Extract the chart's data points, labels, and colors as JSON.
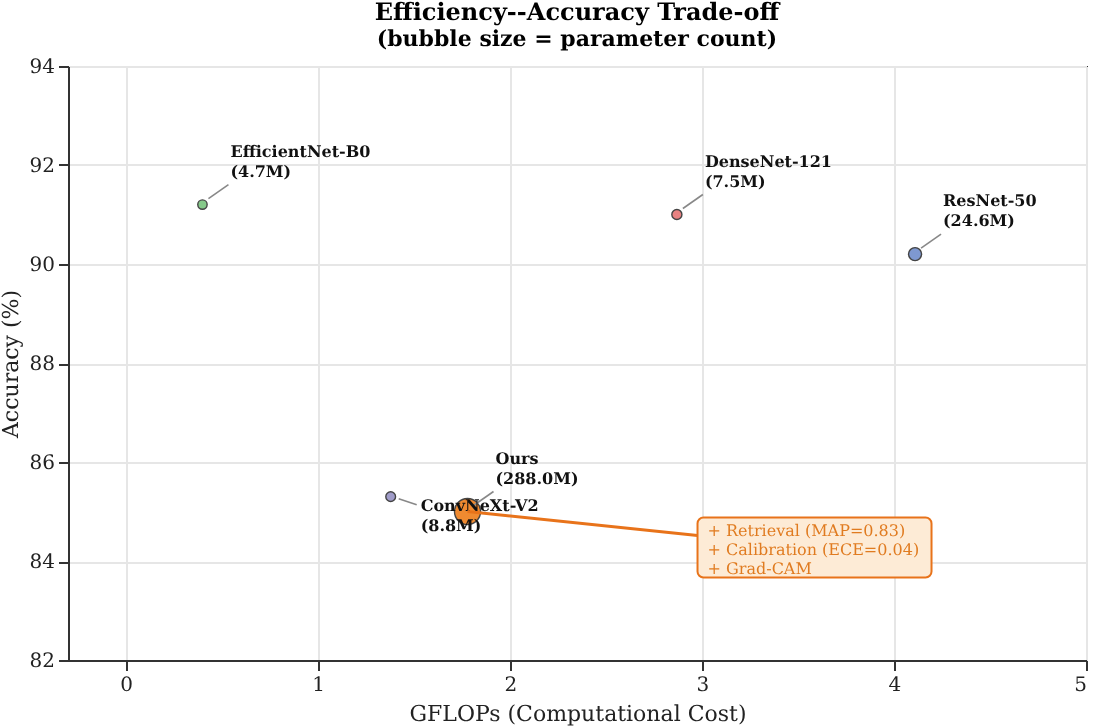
{
  "chart_data": {
    "type": "bubble",
    "title": "Efficiency--Accuracy Trade-off",
    "subtitle": "(bubble size = parameter count)",
    "xlabel": "GFLOPs (Computational Cost)",
    "ylabel": "Accuracy (%)",
    "xlim": [
      -0.3,
      5
    ],
    "xticks": [
      0,
      1,
      2,
      3,
      4,
      5
    ],
    "ylim": [
      82,
      94
    ],
    "yticks": [
      82,
      84,
      86,
      88,
      90,
      92,
      94
    ],
    "grid": true,
    "series": [
      {
        "name": "EfficientNet-B0\n(4.7M)",
        "color": "#86c98a",
        "x": [
          0.4
        ],
        "values": [
          91.2
        ],
        "sizes": [
          0.13
        ]
      },
      {
        "name": "DenseNet-121\n(7.5M)",
        "color": "#e88282",
        "x": [
          2.87
        ],
        "values": [
          91.0
        ],
        "sizes": [
          0.15
        ]
      },
      {
        "name": "ResNet-50\n(24.6M)",
        "color": "#7e98d0",
        "x": [
          4.11
        ],
        "values": [
          90.2
        ],
        "sizes": [
          0.25
        ]
      },
      {
        "name": "ConvNeXt-V2\n(8.8M)",
        "color": "#a09cc9",
        "x": [
          1.38
        ],
        "values": [
          85.3
        ],
        "sizes": [
          0.14
        ]
      },
      {
        "name": "Ours\n(288.0M)",
        "color": "#f08a30",
        "x": [
          1.78
        ],
        "values": [
          85.0
        ],
        "sizes": [
          1
        ]
      }
    ],
    "annotations": [
      {
        "text": "+ Retrieval (MAP=0.83)\n+ Calibration (ECE=0.04)\n+ Grad-CAM",
        "x": 1.78,
        "y": 85.0
      }
    ]
  }
}
